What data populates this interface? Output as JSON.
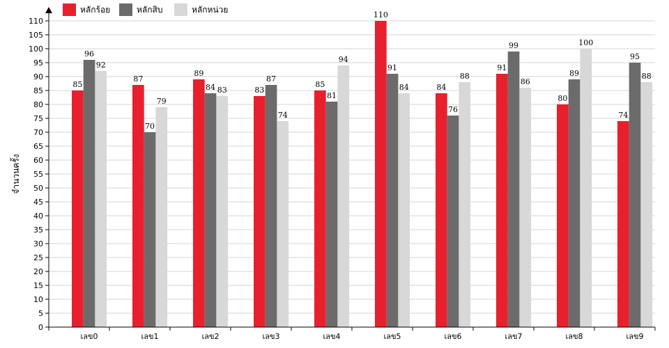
{
  "chart_data": {
    "type": "bar",
    "ylabel": "จำนวนครั้ง",
    "ylim": [
      0,
      110
    ],
    "ytick_step": 5,
    "grid": true,
    "legend_position": "top-left",
    "categories": [
      "เลข0",
      "เลข1",
      "เลข2",
      "เลข3",
      "เลข4",
      "เลข5",
      "เลข6",
      "เลข7",
      "เลข8",
      "เลข9"
    ],
    "series": [
      {
        "name": "หลักร้อย",
        "color": "#e8202e",
        "values": [
          85,
          87,
          89,
          83,
          85,
          110,
          84,
          91,
          80,
          74
        ]
      },
      {
        "name": "หลักสิบ",
        "color": "#6b6b6b",
        "values": [
          96,
          70,
          84,
          87,
          81,
          91,
          76,
          99,
          89,
          95
        ]
      },
      {
        "name": "หลักหน่วย",
        "color": "#d8d8d8",
        "values": [
          92,
          79,
          83,
          74,
          94,
          84,
          88,
          86,
          100,
          88
        ]
      }
    ]
  }
}
